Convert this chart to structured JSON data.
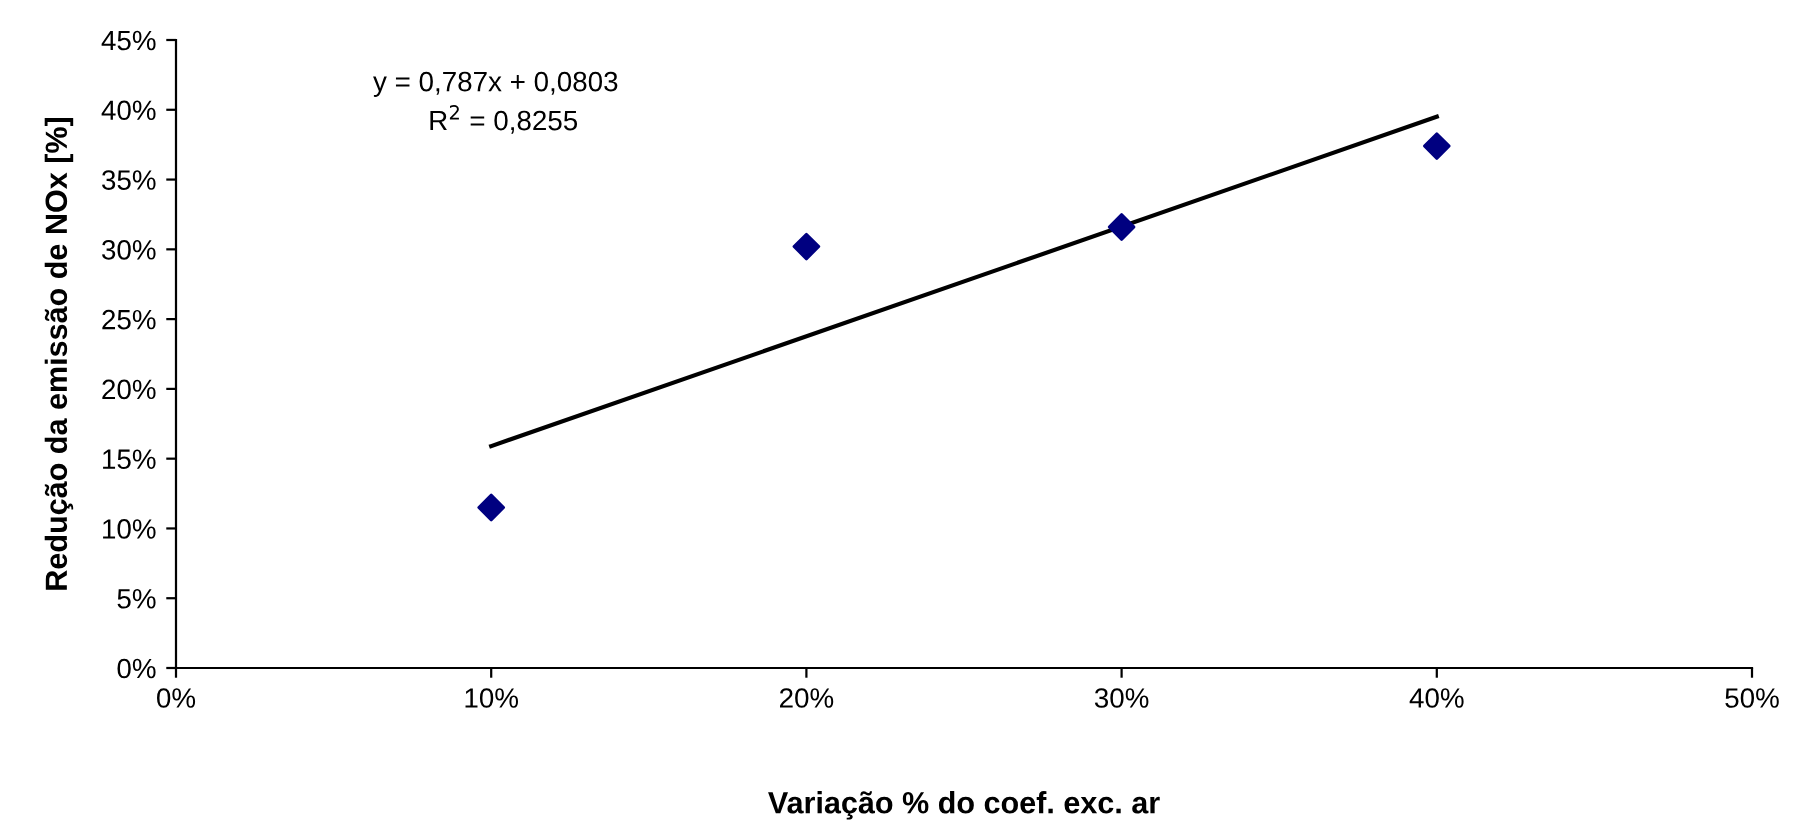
{
  "chart_data": {
    "type": "scatter",
    "xlabel": "Variação % do coef. exc. ar",
    "ylabel": "Redução da emissão de NOx [%]",
    "annotations": [
      "y = 0,787x + 0,0803",
      "R$^{2}$ = 0,8255"
    ],
    "x": [
      10,
      20,
      30,
      40
    ],
    "series": [
      {
        "color": "#000080",
        "marker": "diamond",
        "values": [
          11.5,
          30.2,
          31.6,
          37.4
        ]
      },
      {
        "type": "line",
        "color": "#000000",
        "marker": "none",
        "line_style": "solid",
        "x": [
          10,
          40
        ],
        "values": [
          15.9,
          39.5
        ]
      }
    ],
    "xlim": [
      0,
      50
    ],
    "ylim": [
      0,
      45
    ],
    "xticks": [
      {
        "value": 0,
        "label": "0%"
      },
      {
        "value": 10,
        "label": "10%"
      },
      {
        "value": 20,
        "label": "20%"
      },
      {
        "value": 30,
        "label": "30%"
      },
      {
        "value": 40,
        "label": "40%"
      },
      {
        "value": 50,
        "label": "50%"
      }
    ],
    "yticks": [
      {
        "value": 0,
        "label": "0%"
      },
      {
        "value": 5,
        "label": "5%"
      },
      {
        "value": 10,
        "label": "10%"
      },
      {
        "value": 15,
        "label": "15%"
      },
      {
        "value": 20,
        "label": "20%"
      },
      {
        "value": 25,
        "label": "25%"
      },
      {
        "value": 30,
        "label": "30%"
      },
      {
        "value": 35,
        "label": "35%"
      },
      {
        "value": 40,
        "label": "40%"
      },
      {
        "value": 45,
        "label": "45%"
      }
    ],
    "grid": false
  }
}
